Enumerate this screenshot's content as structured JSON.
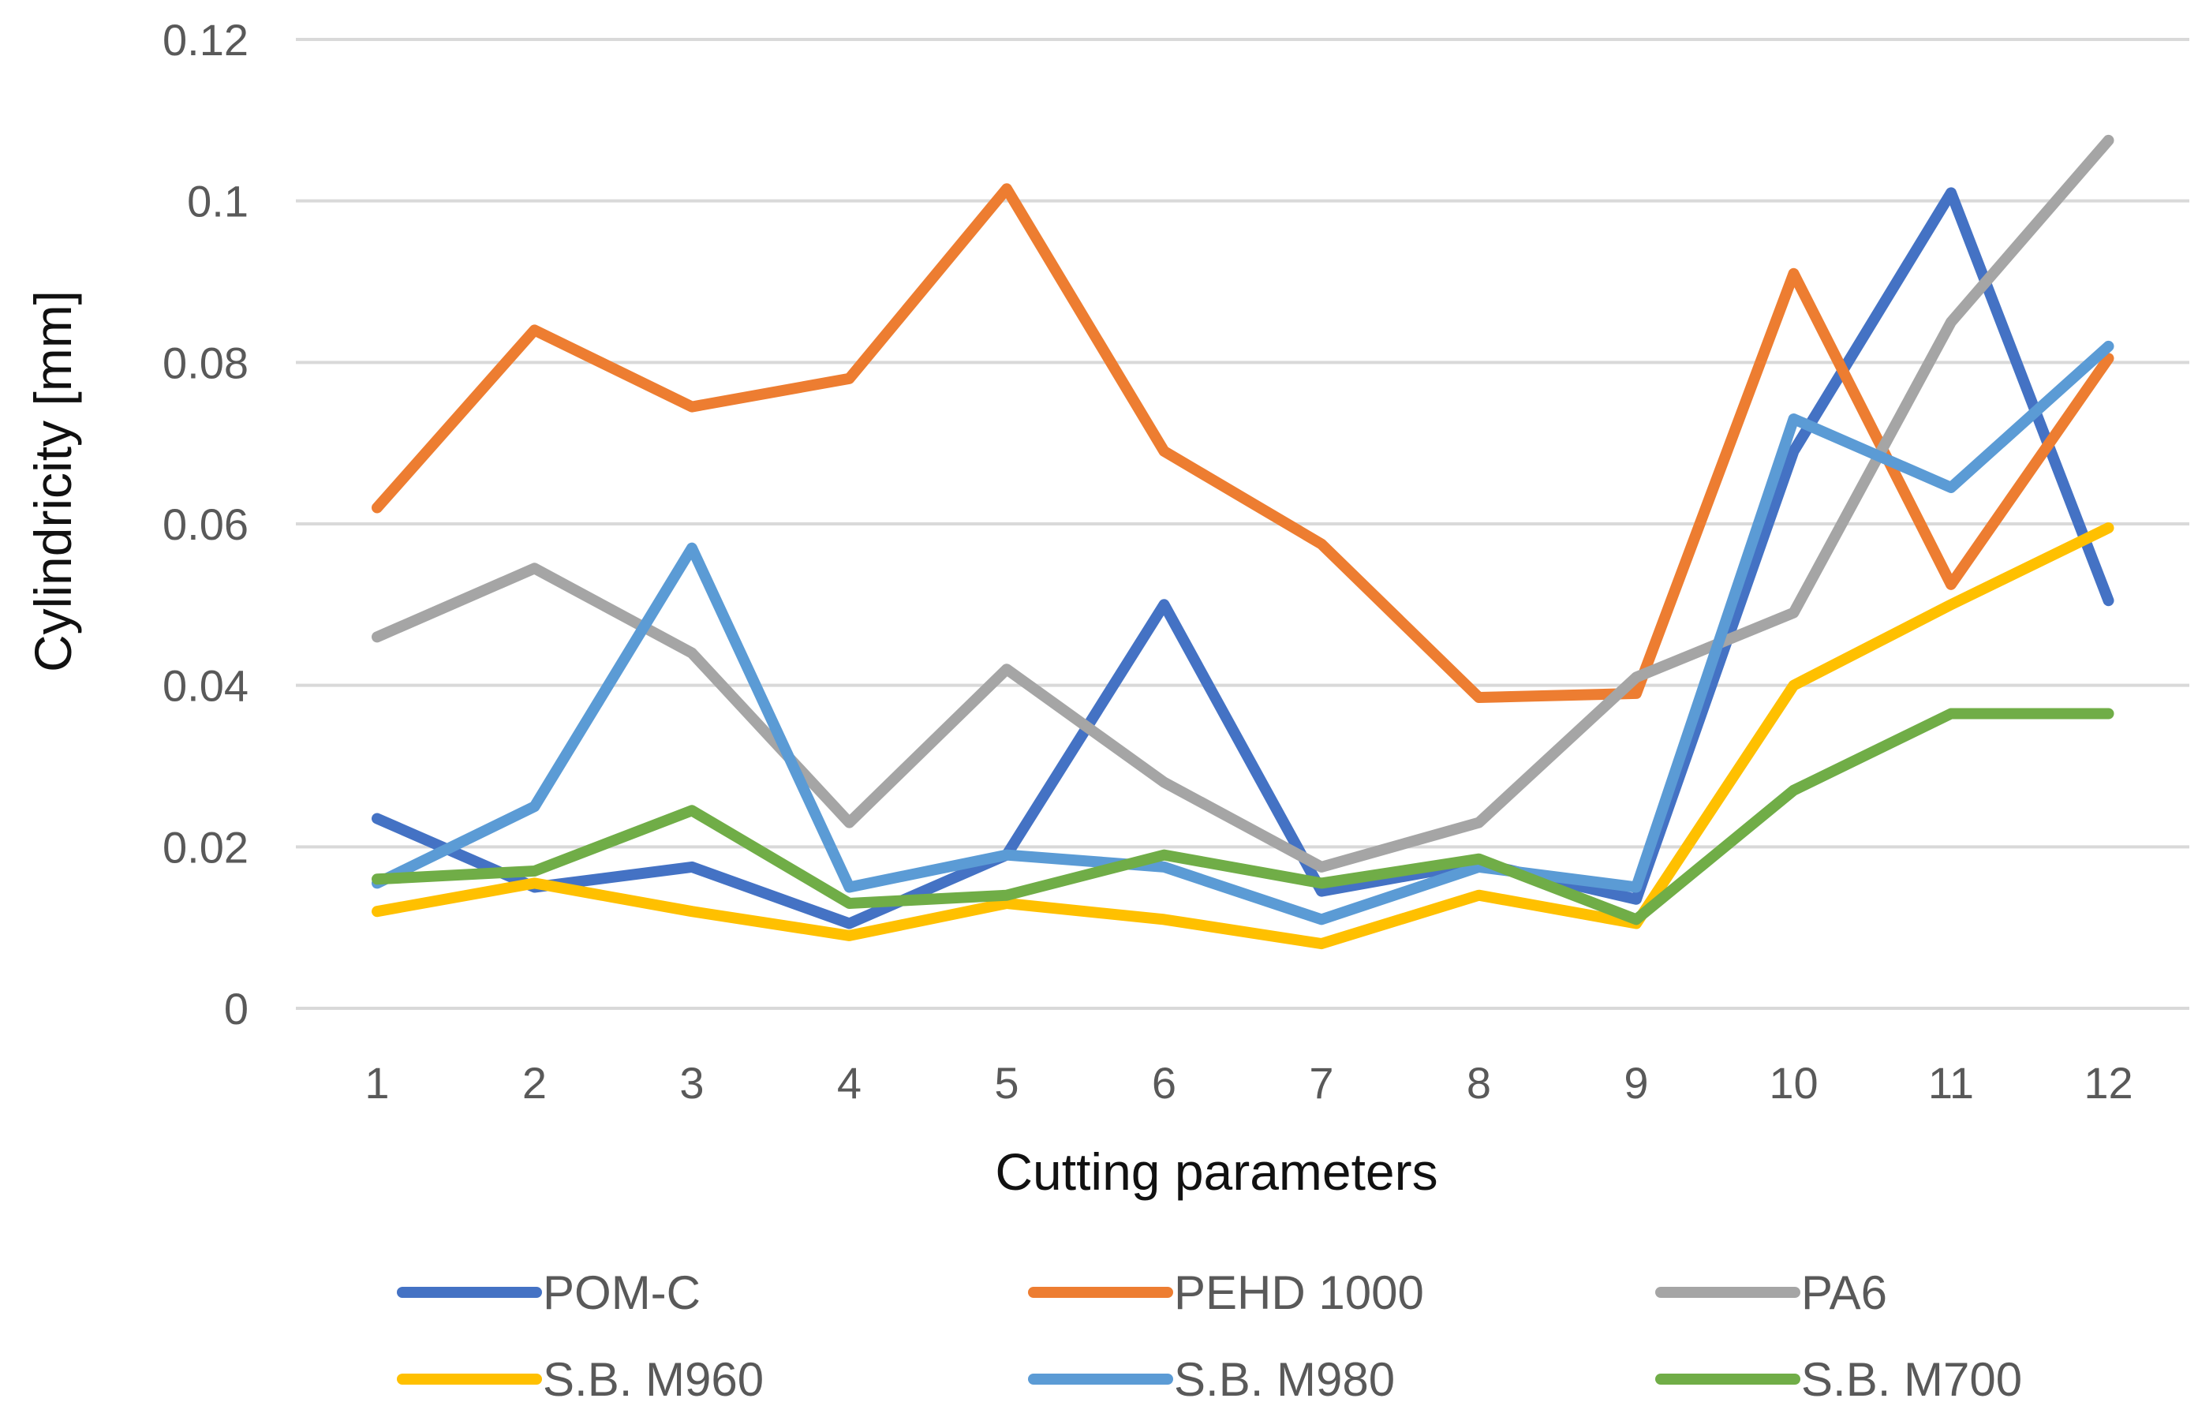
{
  "chart_data": {
    "type": "line",
    "title": "",
    "xlabel": "Cutting parameters",
    "ylabel": "Cylindricity  [mm]",
    "categories": [
      "1",
      "2",
      "3",
      "4",
      "5",
      "6",
      "7",
      "8",
      "9",
      "10",
      "11",
      "12"
    ],
    "ylim": [
      0,
      0.12
    ],
    "yticks": [
      "0",
      "0.02",
      "0.04",
      "0.06",
      "0.08",
      "0.1",
      "0.12"
    ],
    "yticks_values": [
      0,
      0.02,
      0.04,
      0.06,
      0.08,
      0.1,
      0.12
    ],
    "grid": true,
    "legend_position": "bottom",
    "series": [
      {
        "name": "POM-C",
        "color": "#4472c4",
        "values": [
          0.0235,
          0.015,
          0.0175,
          0.0105,
          0.019,
          0.05,
          0.0145,
          0.018,
          0.0135,
          0.069,
          0.101,
          0.0505
        ]
      },
      {
        "name": "PEHD 1000",
        "color": "#ed7d31",
        "values": [
          0.062,
          0.084,
          0.0745,
          0.078,
          0.1015,
          0.069,
          0.0575,
          0.0385,
          0.039,
          0.091,
          0.0525,
          0.0805
        ]
      },
      {
        "name": "PA6",
        "color": "#a5a5a5",
        "values": [
          0.046,
          0.0545,
          0.044,
          0.023,
          0.042,
          0.028,
          0.0175,
          0.023,
          0.041,
          0.049,
          0.085,
          0.1075
        ]
      },
      {
        "name": "S.B. M960",
        "color": "#ffc000",
        "values": [
          0.012,
          0.0155,
          0.012,
          0.009,
          0.013,
          0.011,
          0.008,
          0.014,
          0.0105,
          0.04,
          0.05,
          0.0595
        ]
      },
      {
        "name": "S.B. M980",
        "color": "#5b9bd5",
        "values": [
          0.0155,
          0.025,
          0.057,
          0.015,
          0.019,
          0.0175,
          0.011,
          0.0175,
          0.015,
          0.073,
          0.0645,
          0.082
        ]
      },
      {
        "name": "S.B. M700",
        "color": "#70ad47",
        "values": [
          0.016,
          0.017,
          0.0245,
          0.013,
          0.014,
          0.019,
          0.0155,
          0.0185,
          0.011,
          0.027,
          0.0365,
          0.0365
        ]
      }
    ]
  }
}
